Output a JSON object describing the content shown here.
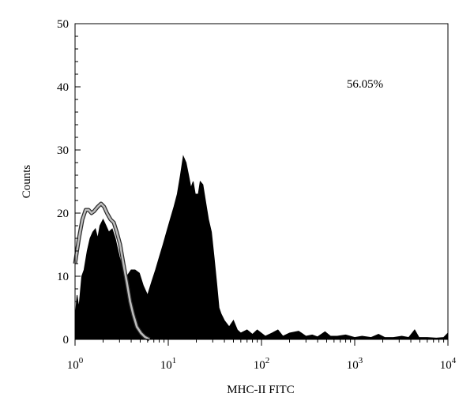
{
  "chart_data": {
    "type": "area",
    "title": "",
    "xlabel": "MHC-II FITC",
    "ylabel": "Counts",
    "x_scale": "log",
    "xlim": [
      1,
      10000
    ],
    "ylim": [
      0,
      50
    ],
    "grid": false,
    "annotation": "56.05%",
    "x_ticks": [
      {
        "value": 1,
        "base": "10",
        "exp": "0"
      },
      {
        "value": 10,
        "base": "10",
        "exp": "1"
      },
      {
        "value": 100,
        "base": "10",
        "exp": "2"
      },
      {
        "value": 1000,
        "base": "10",
        "exp": "3"
      },
      {
        "value": 10000,
        "base": "10",
        "exp": "4"
      }
    ],
    "y_ticks": [
      0,
      10,
      20,
      30,
      40,
      50
    ],
    "series": [
      {
        "style": "filled",
        "color": "#000000",
        "points": [
          [
            1.0,
            3
          ],
          [
            1.05,
            7
          ],
          [
            1.1,
            5
          ],
          [
            1.18,
            10
          ],
          [
            1.25,
            11
          ],
          [
            1.35,
            14
          ],
          [
            1.45,
            16
          ],
          [
            1.55,
            17
          ],
          [
            1.65,
            17.5
          ],
          [
            1.75,
            16
          ],
          [
            1.85,
            18
          ],
          [
            2.0,
            19
          ],
          [
            2.15,
            18
          ],
          [
            2.3,
            17
          ],
          [
            2.5,
            17.5
          ],
          [
            2.7,
            16
          ],
          [
            3.0,
            13
          ],
          [
            3.3,
            11
          ],
          [
            3.6,
            10
          ],
          [
            4.0,
            11
          ],
          [
            4.4,
            11
          ],
          [
            4.9,
            10.5
          ],
          [
            5.4,
            8.5
          ],
          [
            6.0,
            7
          ],
          [
            6.6,
            9
          ],
          [
            7.3,
            11
          ],
          [
            8.0,
            13
          ],
          [
            8.8,
            15
          ],
          [
            9.6,
            17
          ],
          [
            10.5,
            19
          ],
          [
            11.5,
            21
          ],
          [
            12.5,
            23
          ],
          [
            13.5,
            26
          ],
          [
            14.5,
            29
          ],
          [
            15.5,
            28
          ],
          [
            16.5,
            26
          ],
          [
            17.5,
            24
          ],
          [
            18.5,
            25
          ],
          [
            19.5,
            23
          ],
          [
            21,
            23
          ],
          [
            22,
            25
          ],
          [
            23.5,
            24.5
          ],
          [
            25,
            22
          ],
          [
            27,
            19
          ],
          [
            29,
            17
          ],
          [
            31,
            13
          ],
          [
            33,
            9
          ],
          [
            35,
            5
          ],
          [
            37,
            4
          ],
          [
            40,
            3
          ],
          [
            45,
            2
          ],
          [
            50,
            3
          ],
          [
            55,
            1.5
          ],
          [
            60,
            1
          ],
          [
            70,
            1.5
          ],
          [
            80,
            0.8
          ],
          [
            90,
            1.5
          ],
          [
            110,
            0.5
          ],
          [
            130,
            1
          ],
          [
            150,
            1.5
          ],
          [
            170,
            0.5
          ],
          [
            200,
            1
          ],
          [
            250,
            1.3
          ],
          [
            300,
            0.5
          ],
          [
            350,
            0.7
          ],
          [
            400,
            0.4
          ],
          [
            480,
            1.2
          ],
          [
            550,
            0.5
          ],
          [
            650,
            0.5
          ],
          [
            800,
            0.7
          ],
          [
            1000,
            0.3
          ],
          [
            1200,
            0.5
          ],
          [
            1500,
            0.3
          ],
          [
            1800,
            0.8
          ],
          [
            2100,
            0.3
          ],
          [
            2600,
            0.3
          ],
          [
            3200,
            0.5
          ],
          [
            3800,
            0.3
          ],
          [
            4400,
            1.5
          ],
          [
            4900,
            0.3
          ],
          [
            6000,
            0.3
          ],
          [
            7500,
            0.2
          ],
          [
            9000,
            0.3
          ],
          [
            10000,
            1
          ]
        ]
      },
      {
        "style": "outline",
        "color": "#bdbdbd",
        "points": [
          [
            1.0,
            12
          ],
          [
            1.1,
            16
          ],
          [
            1.2,
            19
          ],
          [
            1.3,
            20.5
          ],
          [
            1.4,
            20.5
          ],
          [
            1.5,
            20
          ],
          [
            1.6,
            20.3
          ],
          [
            1.75,
            21
          ],
          [
            1.9,
            21.5
          ],
          [
            2.05,
            21
          ],
          [
            2.2,
            20
          ],
          [
            2.4,
            19
          ],
          [
            2.6,
            18.5
          ],
          [
            2.8,
            17
          ],
          [
            3.05,
            15
          ],
          [
            3.3,
            12
          ],
          [
            3.6,
            9
          ],
          [
            3.9,
            6
          ],
          [
            4.2,
            4
          ],
          [
            4.6,
            2
          ],
          [
            5.1,
            1
          ],
          [
            5.6,
            0.4
          ],
          [
            6.3,
            0
          ]
        ]
      }
    ]
  }
}
